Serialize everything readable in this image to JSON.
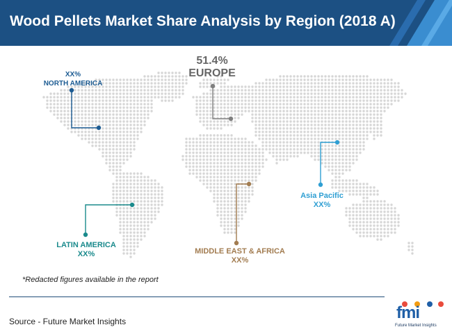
{
  "title": "Wood Pellets Market Share Analysis by Region (2018 A)",
  "colors": {
    "header_dark": "#1c5083",
    "header_light": "#3a8dd0",
    "map_dots": "#d6d6d6",
    "north_america": "#1d5c93",
    "europe": "#7f7f7f",
    "latin_america": "#1a8a8c",
    "middle_east_africa": "#a27c50",
    "asia_pacific": "#2f9fd3"
  },
  "chart_data": {
    "type": "map",
    "title": "Wood Pellets Market Share Analysis by Region (2018 A)",
    "regions": [
      {
        "name": "NORTH AMERICA",
        "value_label": "XX%"
      },
      {
        "name": "EUROPE",
        "value": 51.4,
        "value_label": "51.4%"
      },
      {
        "name": "LATIN AMERICA",
        "value_label": "XX%"
      },
      {
        "name": "MIDDLE EAST & AFRICA",
        "value_label": "XX%"
      },
      {
        "name": "Asia Pacific",
        "value_label": "XX%"
      }
    ]
  },
  "note": "*Redacted figures available in the report",
  "source": "Source - Future Market Insights",
  "logo": {
    "letters": "fmi",
    "text": "Future Market Insights"
  }
}
